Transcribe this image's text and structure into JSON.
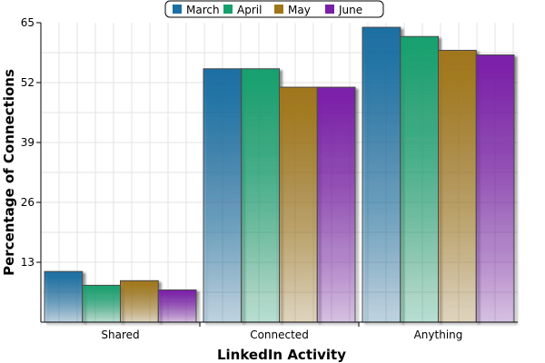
{
  "chart_data": {
    "type": "bar",
    "title": "",
    "xlabel": "LinkedIn Activity",
    "ylabel": "Percentage of Connections",
    "categories": [
      "Shared",
      "Connected",
      "Anything"
    ],
    "series": [
      {
        "name": "March",
        "color": "#1a6fa3",
        "values": [
          11,
          55,
          64
        ]
      },
      {
        "name": "April",
        "color": "#16a06e",
        "values": [
          8,
          55,
          62
        ]
      },
      {
        "name": "May",
        "color": "#a0761a",
        "values": [
          9,
          51,
          59
        ]
      },
      {
        "name": "June",
        "color": "#7a1fa8",
        "values": [
          7,
          51,
          58
        ]
      }
    ],
    "ylim": [
      0,
      65
    ],
    "yticks": [
      13,
      26,
      39,
      52,
      65
    ],
    "grid": true,
    "legend_position": "top-center"
  }
}
